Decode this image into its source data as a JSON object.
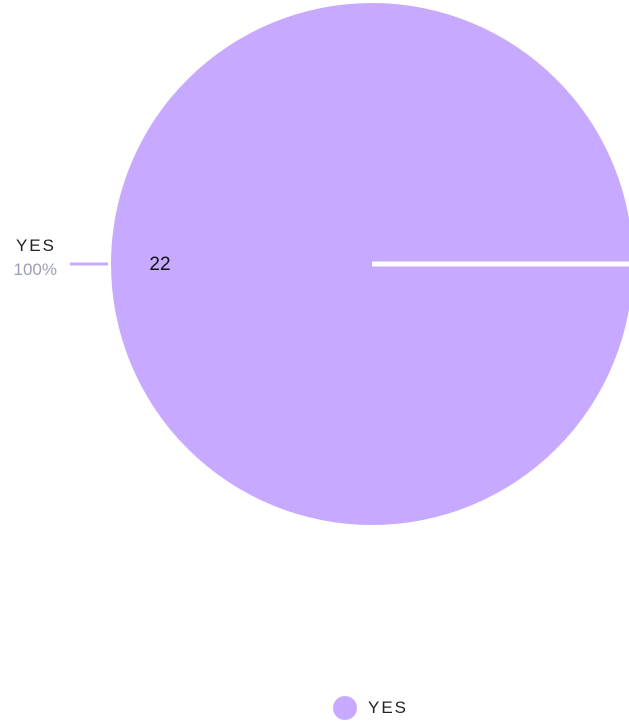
{
  "chart_data": {
    "type": "pie",
    "categories": [
      "YES"
    ],
    "values": [
      22
    ],
    "percent_labels": [
      "100%"
    ],
    "colors": [
      "#c7aaff"
    ],
    "legend": {
      "placement": "bottom",
      "entries": [
        "YES"
      ]
    }
  }
}
